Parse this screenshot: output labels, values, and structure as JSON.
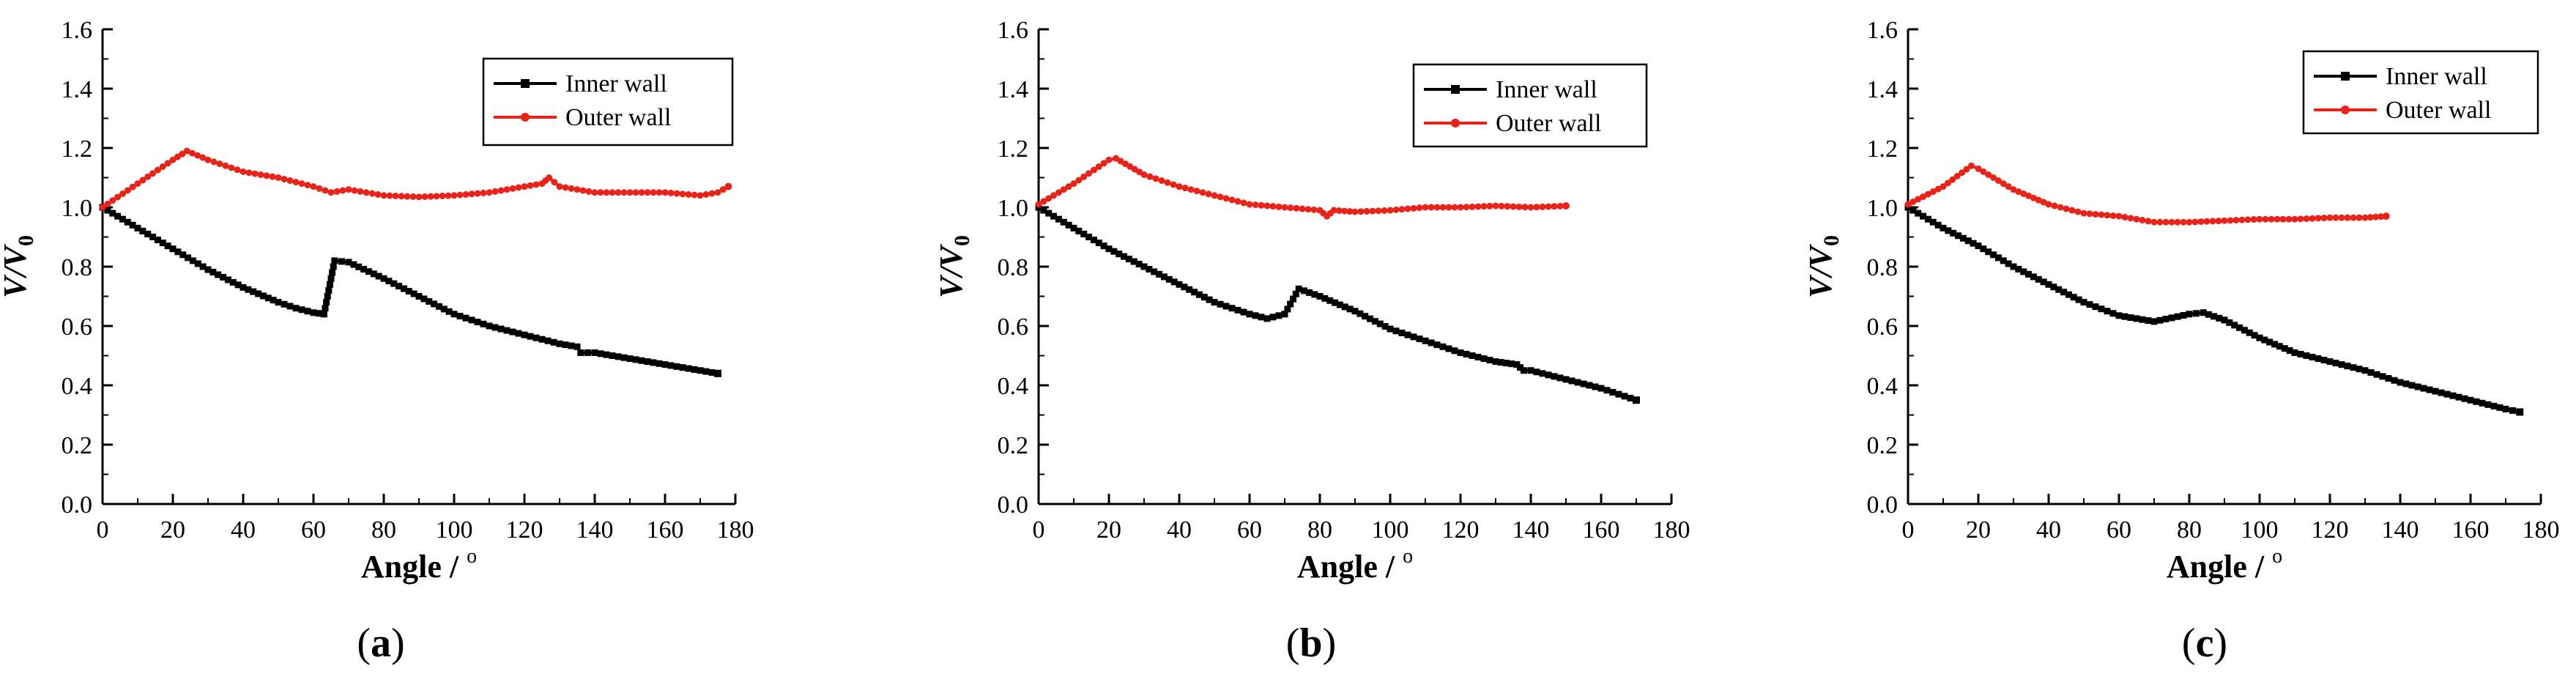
{
  "chart_data": [
    {
      "type": "line",
      "panel_label": "(a)",
      "panel_letter": "a",
      "xlabel": "Angle / ",
      "xlabel_unit": "o",
      "ylabel_main": "V/V",
      "ylabel_sub": "0",
      "xlim": [
        0,
        180
      ],
      "ylim": [
        0.0,
        1.6
      ],
      "xticks": [
        "0",
        "20",
        "40",
        "60",
        "80",
        "100",
        "120",
        "140",
        "160",
        "180"
      ],
      "yticks": [
        "0.0",
        "0.2",
        "0.4",
        "0.6",
        "0.8",
        "1.0",
        "1.2",
        "1.4",
        "1.6"
      ],
      "legend_position": "top-right",
      "series": [
        {
          "name": "Inner wall",
          "color": "#000000",
          "marker": "square",
          "x": [
            0,
            10,
            20,
            30,
            40,
            50,
            55,
            60,
            63,
            66,
            70,
            80,
            90,
            100,
            110,
            120,
            130,
            135,
            136,
            140,
            150,
            160,
            170,
            175
          ],
          "y": [
            1.0,
            0.93,
            0.86,
            0.79,
            0.73,
            0.68,
            0.66,
            0.645,
            0.64,
            0.82,
            0.815,
            0.76,
            0.7,
            0.64,
            0.6,
            0.57,
            0.54,
            0.53,
            0.51,
            0.51,
            0.49,
            0.47,
            0.45,
            0.44
          ]
        },
        {
          "name": "Outer wall",
          "color": "#e8231a",
          "marker": "circle",
          "x": [
            0,
            10,
            20,
            24,
            30,
            40,
            50,
            60,
            65,
            70,
            80,
            90,
            100,
            110,
            120,
            125,
            127,
            130,
            140,
            150,
            160,
            170,
            175,
            178
          ],
          "y": [
            1.0,
            1.08,
            1.16,
            1.19,
            1.16,
            1.12,
            1.1,
            1.07,
            1.05,
            1.06,
            1.04,
            1.035,
            1.04,
            1.05,
            1.07,
            1.08,
            1.1,
            1.07,
            1.05,
            1.05,
            1.05,
            1.04,
            1.05,
            1.07
          ]
        }
      ]
    },
    {
      "type": "line",
      "panel_label": "(b)",
      "panel_letter": "b",
      "xlabel": "Angle / ",
      "xlabel_unit": "o",
      "ylabel_main": "V/V",
      "ylabel_sub": "0",
      "xlim": [
        0,
        180
      ],
      "ylim": [
        0.0,
        1.6
      ],
      "xticks": [
        "0",
        "20",
        "40",
        "60",
        "80",
        "100",
        "120",
        "140",
        "160",
        "180"
      ],
      "yticks": [
        "0.0",
        "0.2",
        "0.4",
        "0.6",
        "0.8",
        "1.0",
        "1.2",
        "1.4",
        "1.6"
      ],
      "legend_position": "top-right",
      "series": [
        {
          "name": "Inner wall",
          "color": "#000000",
          "marker": "square",
          "x": [
            0,
            10,
            20,
            30,
            40,
            50,
            60,
            65,
            70,
            74,
            80,
            90,
            100,
            110,
            120,
            130,
            136,
            138,
            140,
            150,
            160,
            170
          ],
          "y": [
            1.0,
            0.93,
            0.86,
            0.8,
            0.74,
            0.68,
            0.64,
            0.625,
            0.64,
            0.725,
            0.7,
            0.65,
            0.59,
            0.55,
            0.51,
            0.48,
            0.47,
            0.45,
            0.45,
            0.42,
            0.39,
            0.35
          ]
        },
        {
          "name": "Outer wall",
          "color": "#e8231a",
          "marker": "circle",
          "x": [
            0,
            10,
            20,
            22,
            30,
            40,
            50,
            60,
            70,
            80,
            82,
            84,
            90,
            100,
            110,
            120,
            130,
            140,
            150
          ],
          "y": [
            1.01,
            1.08,
            1.16,
            1.165,
            1.11,
            1.07,
            1.04,
            1.01,
            1.0,
            0.99,
            0.97,
            0.99,
            0.985,
            0.99,
            1.0,
            1.0,
            1.005,
            1.0,
            1.005
          ]
        }
      ]
    },
    {
      "type": "line",
      "panel_label": "(c)",
      "panel_letter": "c",
      "xlabel": "Angle / ",
      "xlabel_unit": "o",
      "ylabel_main": "V/V",
      "ylabel_sub": "0",
      "xlim": [
        0,
        180
      ],
      "ylim": [
        0.0,
        1.6
      ],
      "xticks": [
        "0",
        "20",
        "40",
        "60",
        "80",
        "100",
        "120",
        "140",
        "160",
        "180"
      ],
      "yticks": [
        "0.0",
        "0.2",
        "0.4",
        "0.6",
        "0.8",
        "1.0",
        "1.2",
        "1.4",
        "1.6"
      ],
      "legend_position": "top-right",
      "series": [
        {
          "name": "Inner wall",
          "color": "#000000",
          "marker": "square",
          "x": [
            0,
            10,
            20,
            30,
            40,
            50,
            60,
            70,
            80,
            84,
            90,
            100,
            110,
            120,
            130,
            135,
            140,
            150,
            160,
            170,
            174
          ],
          "y": [
            1.0,
            0.93,
            0.87,
            0.8,
            0.74,
            0.68,
            0.635,
            0.615,
            0.64,
            0.645,
            0.62,
            0.56,
            0.51,
            0.48,
            0.45,
            0.43,
            0.41,
            0.38,
            0.35,
            0.32,
            0.31
          ]
        },
        {
          "name": "Outer wall",
          "color": "#e8231a",
          "marker": "circle",
          "x": [
            0,
            10,
            18,
            20,
            30,
            40,
            50,
            60,
            70,
            80,
            90,
            100,
            110,
            120,
            130,
            136
          ],
          "y": [
            1.01,
            1.07,
            1.14,
            1.13,
            1.06,
            1.01,
            0.98,
            0.97,
            0.95,
            0.95,
            0.955,
            0.96,
            0.96,
            0.965,
            0.965,
            0.97
          ]
        }
      ]
    }
  ]
}
